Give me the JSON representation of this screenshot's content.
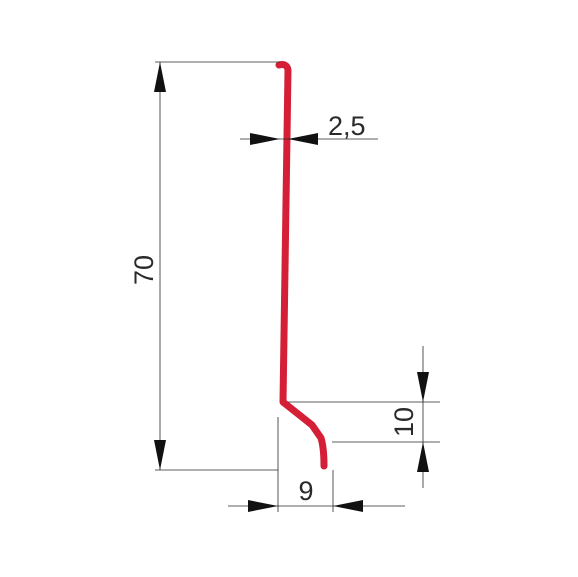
{
  "drawing": {
    "profile_color": "#d41f36",
    "line_color": "#2a2a2a",
    "dimensions": {
      "height": "70",
      "thickness": "2,5",
      "offset_height": "10",
      "offset_width": "9"
    }
  }
}
